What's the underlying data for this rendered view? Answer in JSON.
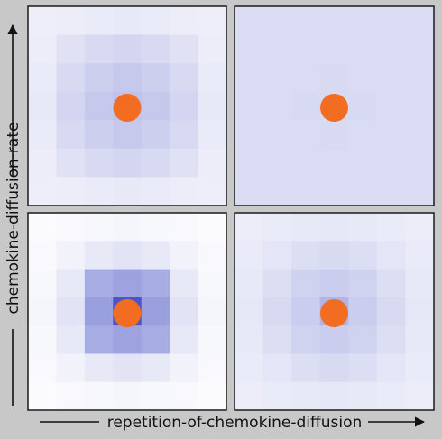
{
  "axes": {
    "x_label": "repetition-of-chemokine-diffusion",
    "y_label": "chemokine-diffusion-rate"
  },
  "colors": {
    "background": "#c8c8c8",
    "cell_dot": "#f26d21",
    "panel_border": "#1a1a1a",
    "grid_base": [
      255,
      255,
      255
    ],
    "grid_full": [
      60,
      70,
      190
    ]
  },
  "panels": [
    {
      "name": "top-left",
      "grid": [
        [
          0.09,
          0.1,
          0.11,
          0.12,
          0.11,
          0.1,
          0.09
        ],
        [
          0.1,
          0.16,
          0.2,
          0.22,
          0.2,
          0.16,
          0.1
        ],
        [
          0.11,
          0.2,
          0.26,
          0.29,
          0.26,
          0.2,
          0.11
        ],
        [
          0.12,
          0.22,
          0.29,
          0.33,
          0.29,
          0.22,
          0.12
        ],
        [
          0.11,
          0.2,
          0.26,
          0.29,
          0.26,
          0.2,
          0.11
        ],
        [
          0.1,
          0.16,
          0.2,
          0.22,
          0.2,
          0.16,
          0.1
        ],
        [
          0.09,
          0.1,
          0.11,
          0.12,
          0.11,
          0.1,
          0.09
        ]
      ]
    },
    {
      "name": "top-right",
      "grid": [
        [
          0.19,
          0.19,
          0.19,
          0.19,
          0.19,
          0.19,
          0.19
        ],
        [
          0.19,
          0.19,
          0.19,
          0.19,
          0.19,
          0.19,
          0.19
        ],
        [
          0.19,
          0.19,
          0.19,
          0.2,
          0.19,
          0.19,
          0.19
        ],
        [
          0.19,
          0.19,
          0.2,
          0.2,
          0.2,
          0.19,
          0.19
        ],
        [
          0.19,
          0.19,
          0.19,
          0.2,
          0.19,
          0.19,
          0.19
        ],
        [
          0.19,
          0.19,
          0.19,
          0.19,
          0.19,
          0.19,
          0.19
        ],
        [
          0.19,
          0.19,
          0.19,
          0.19,
          0.19,
          0.19,
          0.19
        ]
      ]
    },
    {
      "name": "bottom-left",
      "grid": [
        [
          0.02,
          0.03,
          0.04,
          0.05,
          0.04,
          0.03,
          0.02
        ],
        [
          0.03,
          0.07,
          0.12,
          0.15,
          0.12,
          0.07,
          0.03
        ],
        [
          0.04,
          0.12,
          0.45,
          0.5,
          0.45,
          0.12,
          0.04
        ],
        [
          0.05,
          0.15,
          0.52,
          0.92,
          0.52,
          0.15,
          0.05
        ],
        [
          0.04,
          0.12,
          0.45,
          0.5,
          0.45,
          0.12,
          0.04
        ],
        [
          0.03,
          0.07,
          0.12,
          0.15,
          0.12,
          0.07,
          0.03
        ],
        [
          0.02,
          0.03,
          0.04,
          0.05,
          0.04,
          0.03,
          0.02
        ]
      ]
    },
    {
      "name": "bottom-right",
      "grid": [
        [
          0.1,
          0.11,
          0.12,
          0.13,
          0.12,
          0.11,
          0.1
        ],
        [
          0.11,
          0.14,
          0.18,
          0.2,
          0.18,
          0.14,
          0.11
        ],
        [
          0.12,
          0.18,
          0.24,
          0.27,
          0.24,
          0.18,
          0.12
        ],
        [
          0.13,
          0.2,
          0.27,
          0.4,
          0.27,
          0.2,
          0.13
        ],
        [
          0.12,
          0.18,
          0.24,
          0.27,
          0.24,
          0.18,
          0.12
        ],
        [
          0.11,
          0.14,
          0.18,
          0.2,
          0.18,
          0.14,
          0.11
        ],
        [
          0.1,
          0.11,
          0.12,
          0.13,
          0.12,
          0.11,
          0.1
        ]
      ]
    }
  ]
}
